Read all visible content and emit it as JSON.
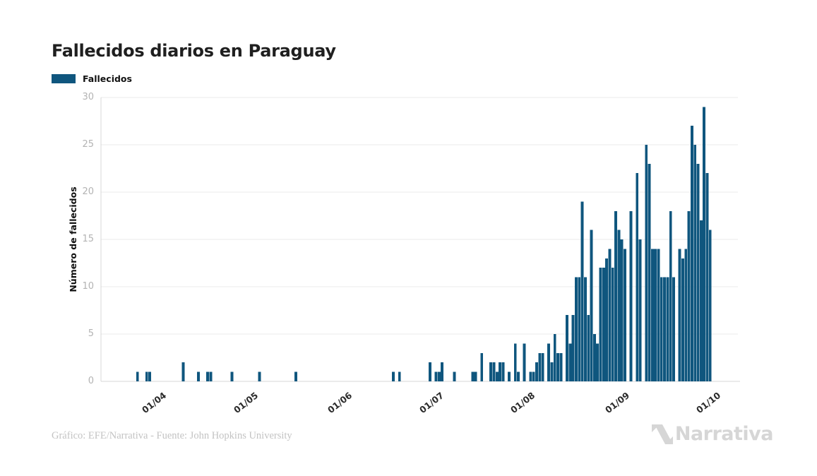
{
  "header": {
    "title": "Fallecidos diarios en Paraguay"
  },
  "legend": {
    "label": "Fallecidos",
    "color": "#0f567e"
  },
  "chart_data": {
    "type": "bar",
    "title": "Fallecidos diarios en Paraguay",
    "series_name": "Fallecidos",
    "xlabel": "",
    "ylabel": "Número de fallecidos",
    "bar_color": "#0f567e",
    "grid": "horizontal",
    "gridline_color": "#ebebeb",
    "axis_line_color": "#d7d7d7",
    "legend_position": "top-left",
    "ylim": [
      0,
      30
    ],
    "y_ticks": [
      0,
      5,
      10,
      15,
      20,
      25,
      30
    ],
    "x_ticks": [
      {
        "label": "01/04",
        "day": 20
      },
      {
        "label": "01/05",
        "day": 50
      },
      {
        "label": "01/06",
        "day": 81
      },
      {
        "label": "01/07",
        "day": 111
      },
      {
        "label": "01/08",
        "day": 141
      },
      {
        "label": "01/09",
        "day": 172
      },
      {
        "label": "01/10",
        "day": 202
      }
    ],
    "start_date": "12/03",
    "x_unit": "day",
    "values": [
      0,
      0,
      0,
      0,
      0,
      0,
      0,
      0,
      0,
      0,
      0,
      0,
      1,
      0,
      0,
      1,
      1,
      0,
      0,
      0,
      0,
      0,
      0,
      0,
      0,
      0,
      0,
      2,
      0,
      0,
      0,
      0,
      1,
      0,
      0,
      1,
      1,
      0,
      0,
      0,
      0,
      0,
      0,
      1,
      0,
      0,
      0,
      0,
      0,
      0,
      0,
      0,
      1,
      0,
      0,
      0,
      0,
      0,
      0,
      0,
      0,
      0,
      0,
      0,
      1,
      0,
      0,
      0,
      0,
      0,
      0,
      0,
      0,
      0,
      0,
      0,
      0,
      0,
      0,
      0,
      0,
      0,
      0,
      0,
      0,
      0,
      0,
      0,
      0,
      0,
      0,
      0,
      0,
      0,
      0,
      0,
      1,
      0,
      1,
      0,
      0,
      0,
      0,
      0,
      0,
      0,
      0,
      0,
      2,
      0,
      1,
      1,
      2,
      0,
      0,
      0,
      1,
      0,
      0,
      0,
      0,
      0,
      1,
      1,
      0,
      3,
      0,
      0,
      2,
      2,
      1,
      2,
      2,
      0,
      1,
      0,
      4,
      1,
      0,
      4,
      0,
      1,
      1,
      2,
      3,
      3,
      0,
      4,
      2,
      5,
      3,
      3,
      0,
      7,
      4,
      7,
      11,
      11,
      19,
      11,
      7,
      16,
      5,
      4,
      12,
      12,
      13,
      14,
      12,
      18,
      16,
      15,
      14,
      0,
      18,
      0,
      22,
      15,
      0,
      25,
      23,
      14,
      14,
      14,
      11,
      11,
      11,
      18,
      11,
      0,
      14,
      13,
      14,
      18,
      27,
      25,
      23,
      17,
      29,
      22,
      16,
      0,
      0,
      0,
      0,
      0,
      0,
      0,
      0,
      0
    ]
  },
  "footer": {
    "credit": "Gráfico: EFE/Narrativa - Fuente: John Hopkins University",
    "logo_text": "Narrativa"
  }
}
